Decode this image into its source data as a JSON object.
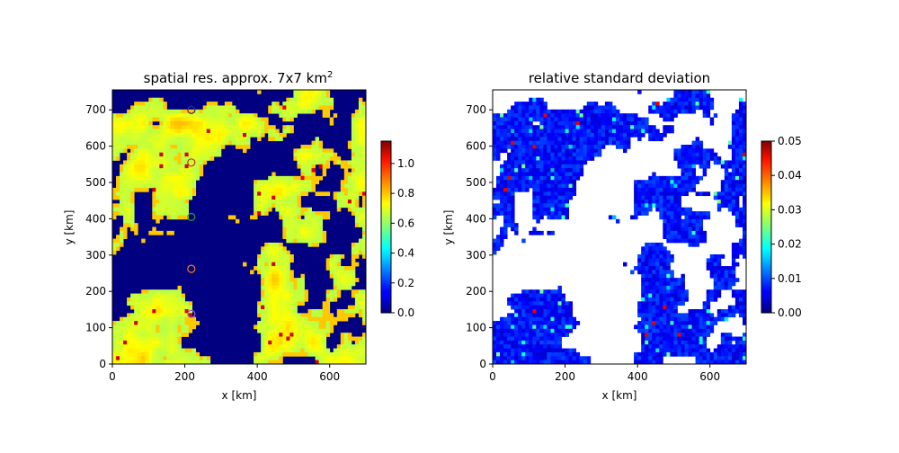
{
  "chart_data": [
    {
      "type": "heatmap",
      "title": "spatial res. approx. 7x7 km",
      "title_superscript": "2",
      "xlabel": "x [km]",
      "ylabel": "y [km]",
      "xlim": [
        0,
        700
      ],
      "ylim": [
        0,
        755
      ],
      "xticks": [
        "0",
        "200",
        "400",
        "600"
      ],
      "yticks": [
        "0",
        "100",
        "200",
        "300",
        "400",
        "500",
        "600",
        "700"
      ],
      "colormap": "jet",
      "colorbar": {
        "min": 0.0,
        "max": 1.15,
        "ticks": [
          "0.0",
          "0.2",
          "0.4",
          "0.6",
          "0.8",
          "1.0"
        ]
      },
      "markers": [
        {
          "shape": "circle",
          "x": 218,
          "y": 700,
          "color": "#2a2a9e"
        },
        {
          "shape": "circle",
          "x": 218,
          "y": 555,
          "color": "#d62728"
        },
        {
          "shape": "circle",
          "x": 218,
          "y": 405,
          "color": "#2ca02c"
        },
        {
          "shape": "circle",
          "x": 218,
          "y": 262,
          "color": "#ff7f0e"
        },
        {
          "shape": "circle",
          "x": 218,
          "y": 138,
          "color": "#9467bd"
        }
      ]
    },
    {
      "type": "heatmap",
      "title": "relative standard deviation",
      "xlabel": "x [km]",
      "ylabel": "y [km]",
      "xlim": [
        0,
        700
      ],
      "ylim": [
        0,
        755
      ],
      "xticks": [
        "0",
        "200",
        "400",
        "600"
      ],
      "yticks": [
        "0",
        "100",
        "200",
        "300",
        "400",
        "500",
        "600",
        "700"
      ],
      "colormap": "jet",
      "colorbar": {
        "min": 0.0,
        "max": 0.05,
        "ticks": [
          "0.00",
          "0.01",
          "0.02",
          "0.03",
          "0.04",
          "0.05"
        ]
      }
    }
  ]
}
